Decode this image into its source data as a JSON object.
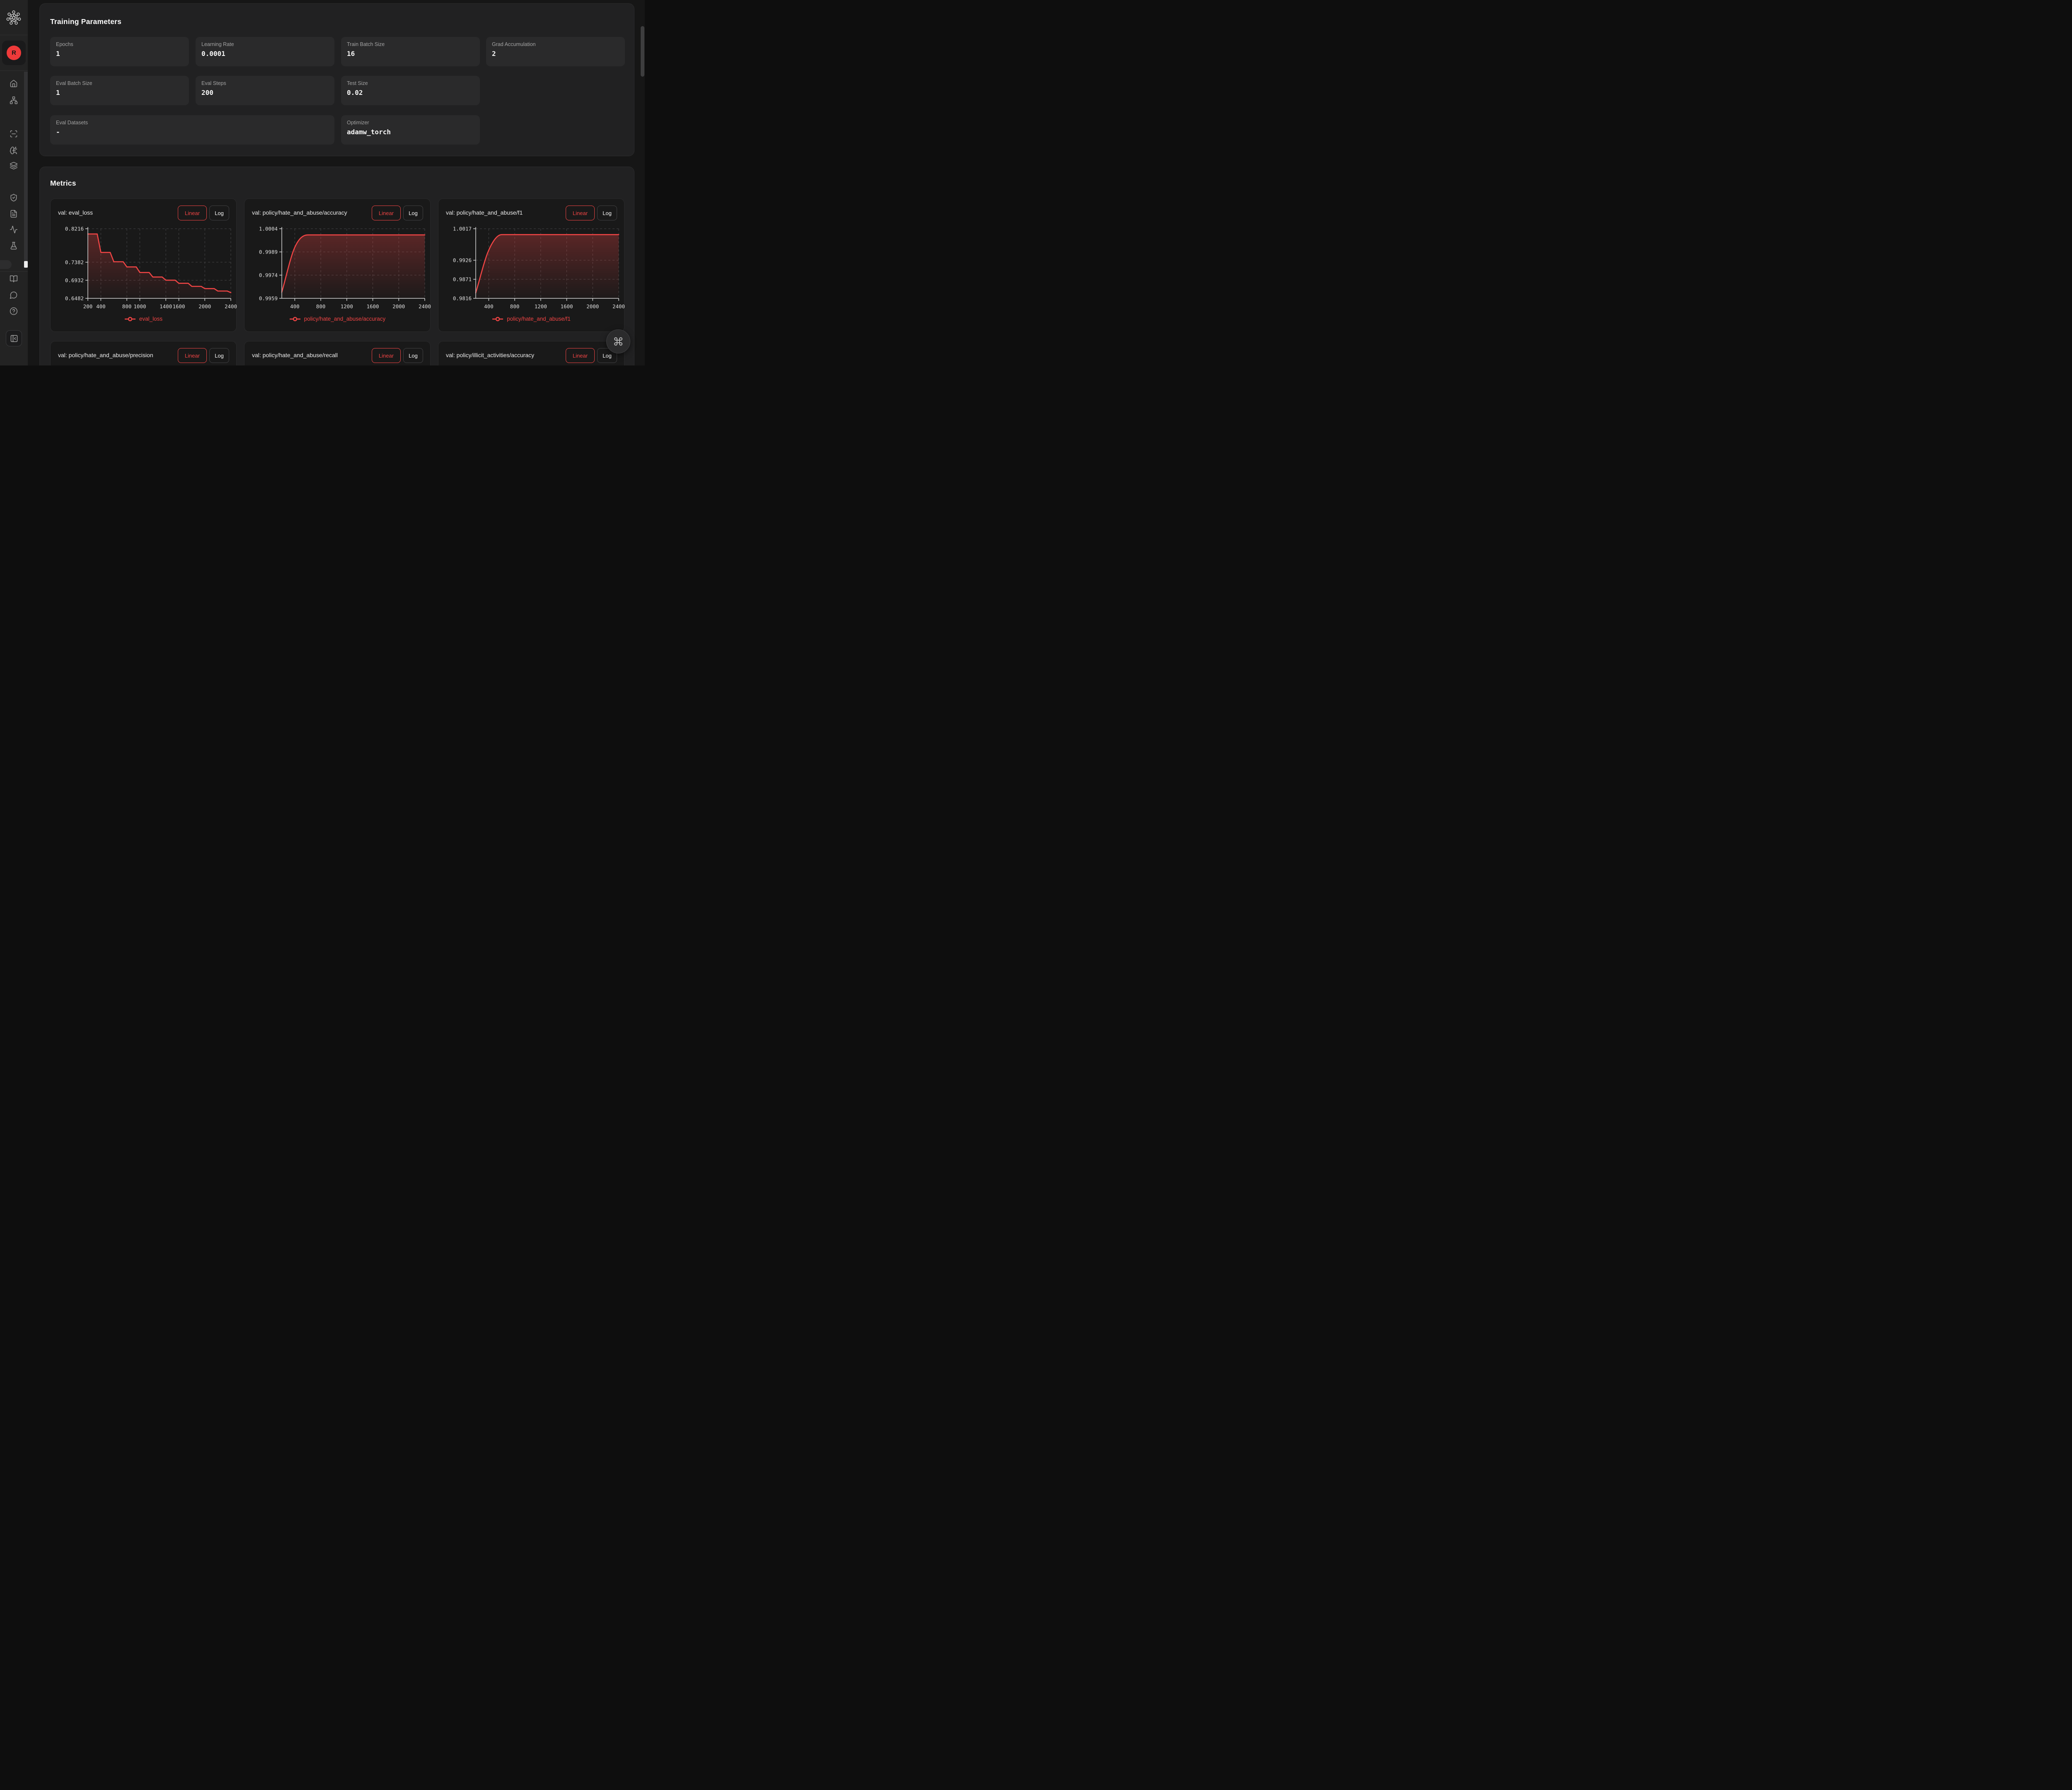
{
  "colors": {
    "accent": "#ef4444",
    "avatar_bg": "#ee3a3a",
    "page_bg": "#161616",
    "sidebar_bg": "#232323",
    "panel_bg": "#212122",
    "param_card_bg": "#2a2a2b",
    "chart_card_bg": "#191919",
    "area_fill": "rgba(239,68,68,0.28)"
  },
  "sidebar": {
    "logo_icon": "molecule-logo",
    "avatar_letter": "R",
    "nav_icons": [
      "home",
      "network",
      "scan-line",
      "brain-circuit",
      "layers",
      "shield-check",
      "file-text",
      "activity",
      "flask"
    ],
    "footer_icons": [
      "book-open",
      "message-circle",
      "help-circle"
    ],
    "toggle_icon": "panel-left-close"
  },
  "panels": {
    "training": {
      "title": "Training Parameters",
      "cards": [
        {
          "label": "Epochs",
          "value": "1"
        },
        {
          "label": "Learning Rate",
          "value": "0.0001"
        },
        {
          "label": "Train Batch Size",
          "value": "16"
        },
        {
          "label": "Grad Accumulation",
          "value": "2"
        },
        {
          "label": "Eval Batch Size",
          "value": "1"
        },
        {
          "label": "Eval Steps",
          "value": "200"
        },
        {
          "label": "Test Size",
          "value": "0.02"
        },
        {
          "label": "Eval Datasets",
          "value": "-"
        },
        {
          "label": "Optimizer",
          "value": "adamw_torch"
        }
      ]
    },
    "metrics": {
      "title": "Metrics",
      "linear_label": "Linear",
      "log_label": "Log"
    }
  },
  "floating": {
    "command_icon": "command"
  },
  "chart_data": [
    {
      "type": "area",
      "title": "val: eval_loss",
      "legend": "eval_loss",
      "xlabel": "",
      "ylabel": "",
      "xlim": [
        200,
        2400
      ],
      "ylim": [
        0.6482,
        0.8216
      ],
      "y_ticks": [
        0.8216,
        0.7382,
        0.6932,
        0.6482
      ],
      "x_ticks": [
        200,
        400,
        800,
        1000,
        1400,
        1600,
        2000,
        2400
      ],
      "grid": "dashed",
      "legend_position": "bottom",
      "interpolation": "step",
      "line_color": "#ef4444",
      "x": [
        200,
        400,
        600,
        800,
        1000,
        1200,
        1400,
        1600,
        1800,
        2000,
        2200,
        2400
      ],
      "y": [
        0.8085,
        0.7626,
        0.7393,
        0.7265,
        0.7125,
        0.7013,
        0.6934,
        0.6857,
        0.678,
        0.6724,
        0.6664,
        0.6624
      ]
    },
    {
      "type": "area",
      "title": "val: policy/hate_and_abuse/accuracy",
      "legend": "policy/hate_and_abuse/accuracy",
      "xlabel": "",
      "ylabel": "",
      "xlim": [
        200,
        2400
      ],
      "ylim": [
        0.9959,
        1.0004
      ],
      "y_ticks": [
        1.0004,
        0.9989,
        0.9974,
        0.9959
      ],
      "x_ticks": [
        400,
        800,
        1200,
        1600,
        2000,
        2400
      ],
      "grid": "dashed",
      "legend_position": "bottom",
      "interpolation": "smooth",
      "line_color": "#ef4444",
      "x": [
        200,
        400,
        600,
        800,
        1000,
        1200,
        1400,
        1600,
        1800,
        2000,
        2200,
        2400
      ],
      "y": [
        0.9963,
        0.9992,
        1.0,
        1.0,
        1.0,
        1.0,
        1.0,
        1.0,
        1.0,
        1.0,
        1.0,
        1.0
      ]
    },
    {
      "type": "area",
      "title": "val: policy/hate_and_abuse/f1",
      "legend": "policy/hate_and_abuse/f1",
      "xlabel": "",
      "ylabel": "",
      "xlim": [
        200,
        2400
      ],
      "ylim": [
        0.9816,
        1.0017
      ],
      "y_ticks": [
        1.0017,
        0.9926,
        0.9871,
        0.9816
      ],
      "x_ticks": [
        400,
        800,
        1200,
        1600,
        2000,
        2400
      ],
      "grid": "dashed",
      "legend_position": "bottom",
      "interpolation": "smooth",
      "line_color": "#ef4444",
      "x": [
        200,
        400,
        600,
        800,
        1000,
        1200,
        1400,
        1600,
        1800,
        2000,
        2200,
        2400
      ],
      "y": [
        0.9832,
        0.9955,
        1.0,
        1.0,
        1.0,
        1.0,
        1.0,
        1.0,
        1.0,
        1.0,
        1.0,
        1.0
      ]
    },
    {
      "type": "area",
      "title": "val: policy/hate_and_abuse/precision",
      "header_only": true
    },
    {
      "type": "area",
      "title": "val: policy/hate_and_abuse/recall",
      "header_only": true
    },
    {
      "type": "area",
      "title": "val: policy/illicit_activities/accuracy",
      "header_only": true
    }
  ]
}
